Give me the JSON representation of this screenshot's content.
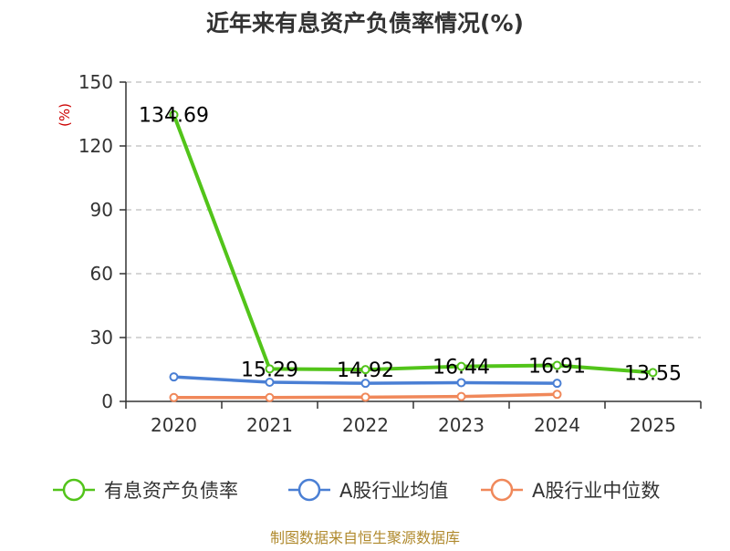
{
  "chart_data": {
    "type": "line",
    "title": "近年来有息资产负债率情况(%)",
    "unit_label": "(%)",
    "categories": [
      "2020",
      "2021",
      "2022",
      "2023",
      "2024",
      "2025"
    ],
    "yticks": [
      "0",
      "30",
      "60",
      "90",
      "120",
      "150"
    ],
    "ylim": [
      0,
      150
    ],
    "grid": true,
    "legend_position": "bottom",
    "series": [
      {
        "name": "有息资产负债率",
        "color": "#52c41a",
        "values": [
          134.69,
          15.29,
          14.92,
          16.44,
          16.91,
          13.55
        ],
        "labels": [
          "134.69",
          "15.29",
          "14.92",
          "16.44",
          "16.91",
          "13.55"
        ]
      },
      {
        "name": "A股行业均值",
        "color": "#4a7fd4",
        "values": [
          11.5,
          9.0,
          8.5,
          8.8,
          8.5,
          null
        ]
      },
      {
        "name": "A股行业中位数",
        "color": "#f0885a",
        "values": [
          1.8,
          1.8,
          2.0,
          2.3,
          3.3,
          null
        ]
      }
    ]
  },
  "source": "制图数据来自恒生聚源数据库"
}
